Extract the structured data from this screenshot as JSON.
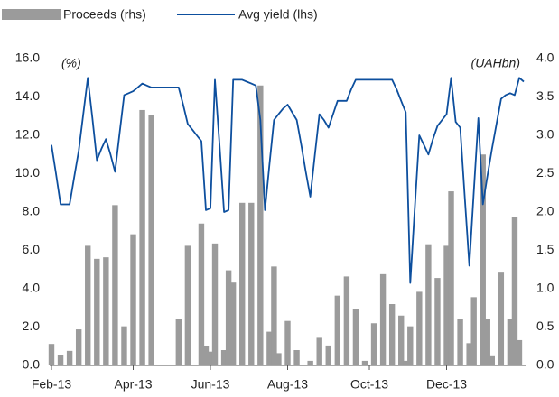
{
  "chart_data": {
    "type": "bar-line",
    "y_label": "(%)",
    "y2_label": "(UAHbn)",
    "categories": [
      "Feb-13",
      null,
      null,
      null,
      null,
      null,
      null,
      null,
      null,
      null,
      null,
      null,
      null,
      null,
      null,
      null,
      null,
      null,
      "Apr-13",
      null,
      null,
      null,
      null,
      null,
      null,
      null,
      null,
      null,
      null,
      null,
      null,
      null,
      null,
      null,
      null,
      "Jun-13",
      null,
      null,
      null,
      null,
      null,
      null,
      null,
      null,
      null,
      null,
      null,
      null,
      null,
      null,
      null,
      null,
      "Aug-13",
      null,
      null,
      null,
      null,
      null,
      null,
      null,
      null,
      null,
      null,
      null,
      null,
      null,
      null,
      null,
      null,
      null,
      "Oct-13",
      null,
      null,
      null,
      null,
      null,
      null,
      null,
      null,
      null,
      null,
      null,
      null,
      null,
      null,
      null,
      null,
      "Dec-13",
      null,
      null,
      null,
      null,
      null,
      null,
      null,
      null,
      null,
      null,
      null,
      null,
      null,
      null,
      null,
      null,
      null
    ],
    "series": [
      {
        "name": "Proceeds (rhs)",
        "type": "bar",
        "axis": "y2",
        "color": "#9b9b9b",
        "values": [
          0.28,
          null,
          0.13,
          null,
          0.19,
          null,
          0.47,
          null,
          1.56,
          null,
          1.39,
          null,
          1.41,
          null,
          2.09,
          null,
          0.51,
          null,
          1.71,
          null,
          3.33,
          null,
          3.26,
          null,
          null,
          null,
          null,
          null,
          0.6,
          null,
          1.56,
          null,
          null,
          1.85,
          0.25,
          0.18,
          1.59,
          null,
          0.2,
          1.24,
          1.08,
          null,
          2.12,
          null,
          2.12,
          null,
          3.65,
          null,
          0.44,
          1.29,
          0.16,
          null,
          0.58,
          null,
          0.2,
          null,
          null,
          0.06,
          null,
          0.36,
          null,
          0.26,
          null,
          0.91,
          null,
          1.16,
          null,
          0.74,
          null,
          0.06,
          null,
          0.55,
          null,
          1.19,
          null,
          0.8,
          null,
          0.65,
          0.06,
          0.51,
          null,
          0.96,
          null,
          1.58,
          null,
          1.14,
          null,
          1.56,
          2.27,
          null,
          0.61,
          null,
          0.29,
          0.89,
          null,
          2.75,
          0.61,
          0.12,
          null,
          1.21,
          null,
          0.61,
          1.93,
          0.33,
          null
        ]
      },
      {
        "name": "Avg yield (lhs)",
        "type": "line",
        "axis": "y",
        "color": "#0d4f9e",
        "values": [
          11.5,
          10.0,
          8.4,
          8.4,
          8.4,
          9.8,
          11.2,
          13.1,
          15.0,
          12.9,
          10.7,
          11.3,
          11.8,
          11.0,
          10.1,
          12.1,
          14.1,
          14.2,
          14.3,
          14.5,
          14.7,
          14.6,
          14.5,
          14.5,
          14.5,
          14.5,
          14.5,
          14.5,
          14.5,
          13.6,
          12.6,
          12.3,
          12.0,
          11.7,
          8.1,
          8.2,
          14.9,
          11.5,
          8.0,
          8.1,
          14.9,
          14.9,
          14.9,
          14.8,
          14.7,
          14.6,
          12.8,
          8.1,
          10.5,
          12.8,
          13.1,
          13.4,
          13.6,
          13.2,
          12.8,
          11.5,
          10.1,
          8.8,
          11.0,
          13.1,
          12.8,
          12.4,
          13.1,
          13.8,
          13.8,
          13.8,
          14.4,
          14.9,
          14.9,
          14.9,
          14.9,
          14.9,
          14.9,
          14.9,
          14.9,
          14.9,
          14.4,
          13.8,
          13.2,
          4.3,
          8.2,
          12.0,
          11.5,
          11.0,
          11.8,
          12.5,
          12.8,
          13.1,
          15.0,
          12.7,
          12.4,
          8.8,
          5.2,
          9.1,
          12.9,
          8.4,
          9.9,
          11.3,
          12.6,
          13.9,
          14.1,
          14.2,
          14.1,
          15.0,
          14.8
        ]
      }
    ],
    "ylim": [
      0,
      16
    ],
    "yticks": [
      {
        "value": 0,
        "label": "0.0"
      },
      {
        "value": 2,
        "label": "2.0"
      },
      {
        "value": 4,
        "label": "4.0"
      },
      {
        "value": 6,
        "label": "6.0"
      },
      {
        "value": 8,
        "label": "8.0"
      },
      {
        "value": 10,
        "label": "10.0"
      },
      {
        "value": 12,
        "label": "12.0"
      },
      {
        "value": 14,
        "label": "14.0"
      },
      {
        "value": 16,
        "label": "16.0"
      }
    ],
    "y2lim": [
      0,
      4
    ],
    "y2ticks": [
      {
        "value": 0,
        "label": "0.0"
      },
      0.5,
      {
        "value": 1,
        "label": "1.0"
      },
      1.5,
      {
        "value": 2,
        "label": "2.0"
      },
      2.5,
      {
        "value": 3,
        "label": "3.0"
      },
      3.5,
      {
        "value": 4,
        "label": "4.0"
      }
    ],
    "legend": "top-left",
    "grid": false
  }
}
